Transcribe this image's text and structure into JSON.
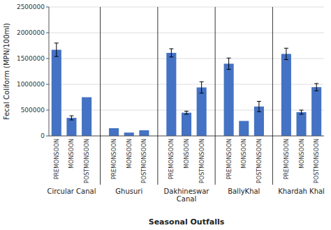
{
  "chart_data": {
    "type": "bar",
    "xlabel": "Seasonal Outfalls",
    "ylabel": "Fecal Coliform (MPN/100ml)",
    "ylim": [
      0,
      2500000
    ],
    "yticks": [
      0,
      500000,
      1000000,
      1500000,
      2000000,
      2500000
    ],
    "color": "#4472C4",
    "grid": true,
    "groups": [
      {
        "label": "Circular Canal",
        "categories": [
          "PREMONSOON",
          "MONSOON",
          "POSTMONSOON"
        ],
        "values": [
          1670000,
          350000,
          750000
        ],
        "errors": [
          130000,
          40000,
          0
        ]
      },
      {
        "label": "Ghusuri",
        "categories": [
          "PREMONSOON",
          "MONSOON",
          "POSTMONSOON"
        ],
        "values": [
          150000,
          65000,
          110000
        ],
        "errors": [
          0,
          0,
          0
        ]
      },
      {
        "label": "Dakhineswar\nCanal",
        "categories": [
          "PREMONSOON",
          "MONSOON",
          "POSTMONSOON"
        ],
        "values": [
          1610000,
          450000,
          940000
        ],
        "errors": [
          80000,
          30000,
          110000
        ]
      },
      {
        "label": "BallyKhal",
        "categories": [
          "PREMONSOON",
          "MONSOON",
          "POSTMONSOON"
        ],
        "values": [
          1400000,
          290000,
          570000
        ],
        "errors": [
          110000,
          0,
          100000
        ]
      },
      {
        "label": "Khardah Khal",
        "categories": [
          "PREMONSOON",
          "MONSOON",
          "POSTMONSOON"
        ],
        "values": [
          1590000,
          460000,
          945000
        ],
        "errors": [
          110000,
          40000,
          70000
        ]
      }
    ]
  }
}
